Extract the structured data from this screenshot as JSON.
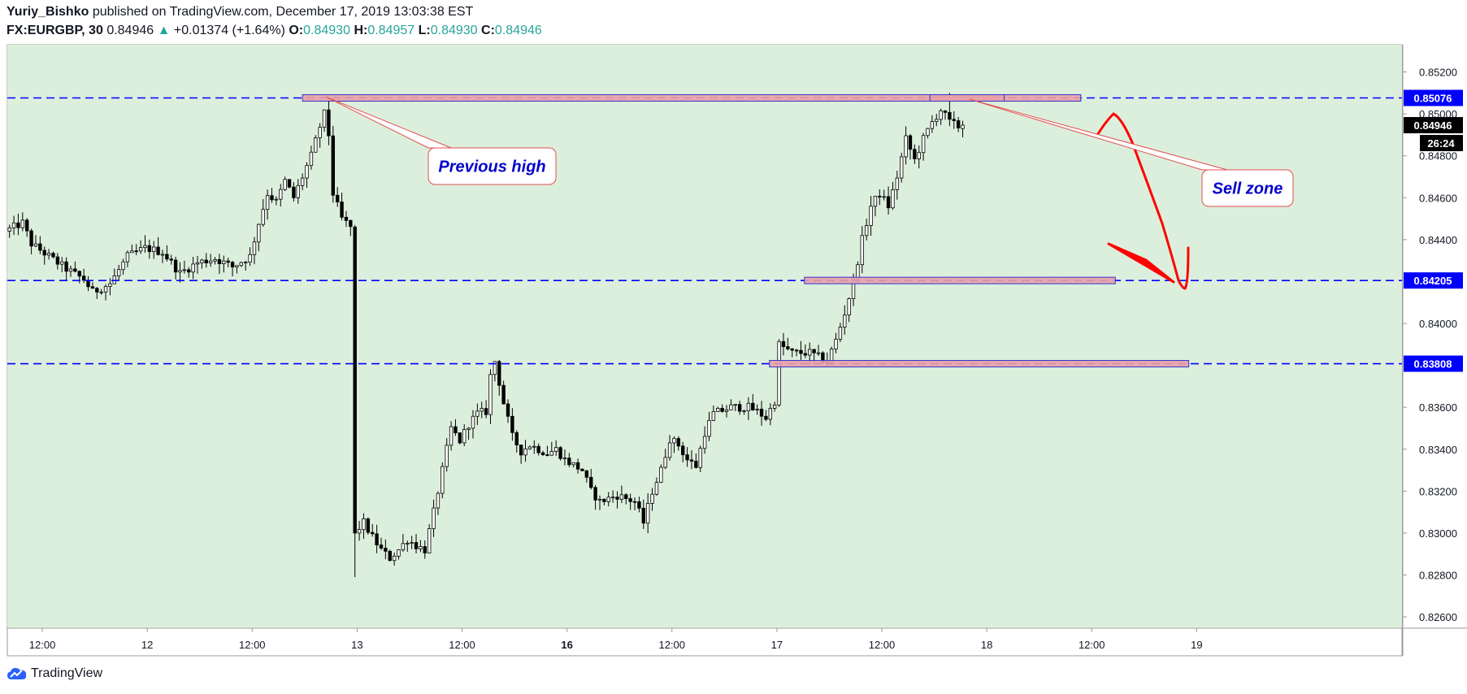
{
  "header": {
    "author": "Yuriy_Bishko",
    "published_text": "published on TradingView.com, December 17, 2019 13:03:38 EST",
    "symbol": "FX:EURGBP, 30",
    "last": "0.84946",
    "change_arrow": "▲",
    "change": "+0.01374 (+1.64%)",
    "o_label": "O:",
    "o_value": "0.84930",
    "h_label": "H:",
    "h_value": "0.84957",
    "l_label": "L:",
    "l_value": "0.84930",
    "c_label": "C:",
    "c_value": "0.84946"
  },
  "footer": {
    "brand": "TradingView",
    "logo_icon": "tradingview-cloud-icon"
  },
  "colors": {
    "background": "#dcefdc",
    "level_line": "#0000ff",
    "zone_fill": "#e8a0a8",
    "zone_border": "#3333cc",
    "callout_text": "#0000cc",
    "arrow": "#ff0000",
    "candle_up": "#ffffff",
    "candle_down": "#000000"
  },
  "chart_data": {
    "type": "candlestick",
    "y_range": [
      0.8255,
      0.8533
    ],
    "y_ticks": [
      "0.85200",
      "0.85000",
      "0.84800",
      "0.84600",
      "0.84400",
      "0.84000",
      "0.83600",
      "0.83400",
      "0.83200",
      "0.83000",
      "0.82800",
      "0.82600"
    ],
    "y_tick_values": [
      0.852,
      0.85,
      0.848,
      0.846,
      0.844,
      0.84,
      0.836,
      0.834,
      0.832,
      0.83,
      0.828,
      0.826
    ],
    "x_range": [
      0,
      288
    ],
    "x_ticks": [
      {
        "label": "12:00",
        "bar": 8,
        "bold": false
      },
      {
        "label": "12",
        "bar": 32,
        "bold": false
      },
      {
        "label": "12:00",
        "bar": 56,
        "bold": false
      },
      {
        "label": "13",
        "bar": 80,
        "bold": false
      },
      {
        "label": "12:00",
        "bar": 104,
        "bold": false
      },
      {
        "label": "16",
        "bar": 128,
        "bold": true
      },
      {
        "label": "12:00",
        "bar": 152,
        "bold": false
      },
      {
        "label": "17",
        "bar": 176,
        "bold": false
      },
      {
        "label": "12:00",
        "bar": 200,
        "bold": false
      },
      {
        "label": "18",
        "bar": 224,
        "bold": false
      },
      {
        "label": "12:00",
        "bar": 248,
        "bold": false
      },
      {
        "label": "19",
        "bar": 272,
        "bold": false
      }
    ],
    "price_path": [
      [
        0,
        0.8444
      ],
      [
        4,
        0.8448
      ],
      [
        6,
        0.8438
      ],
      [
        10,
        0.8432
      ],
      [
        14,
        0.8426
      ],
      [
        18,
        0.8421
      ],
      [
        20,
        0.8415
      ],
      [
        24,
        0.8419
      ],
      [
        28,
        0.8432
      ],
      [
        32,
        0.8436
      ],
      [
        36,
        0.8434
      ],
      [
        40,
        0.8424
      ],
      [
        44,
        0.8429
      ],
      [
        48,
        0.8431
      ],
      [
        52,
        0.8427
      ],
      [
        56,
        0.8432
      ],
      [
        58,
        0.8448
      ],
      [
        60,
        0.8462
      ],
      [
        62,
        0.8458
      ],
      [
        64,
        0.8468
      ],
      [
        66,
        0.846
      ],
      [
        68,
        0.847
      ],
      [
        70,
        0.848
      ],
      [
        72,
        0.8494
      ],
      [
        73,
        0.85
      ],
      [
        74,
        0.849
      ],
      [
        75,
        0.8462
      ],
      [
        77,
        0.845
      ],
      [
        79,
        0.8446
      ],
      [
        80,
        0.83
      ],
      [
        82,
        0.8305
      ],
      [
        84,
        0.8298
      ],
      [
        86,
        0.8292
      ],
      [
        88,
        0.8288
      ],
      [
        90,
        0.8292
      ],
      [
        92,
        0.8297
      ],
      [
        94,
        0.8294
      ],
      [
        96,
        0.8292
      ],
      [
        98,
        0.831
      ],
      [
        100,
        0.833
      ],
      [
        102,
        0.835
      ],
      [
        104,
        0.8344
      ],
      [
        106,
        0.8352
      ],
      [
        108,
        0.8357
      ],
      [
        110,
        0.8358
      ],
      [
        111,
        0.8375
      ],
      [
        112,
        0.8382
      ],
      [
        114,
        0.8362
      ],
      [
        116,
        0.8346
      ],
      [
        118,
        0.8339
      ],
      [
        120,
        0.8342
      ],
      [
        124,
        0.8338
      ],
      [
        126,
        0.834
      ],
      [
        128,
        0.8335
      ],
      [
        132,
        0.833
      ],
      [
        134,
        0.832
      ],
      [
        136,
        0.8315
      ],
      [
        140,
        0.8318
      ],
      [
        144,
        0.8315
      ],
      [
        146,
        0.8305
      ],
      [
        148,
        0.832
      ],
      [
        150,
        0.833
      ],
      [
        152,
        0.8345
      ],
      [
        154,
        0.8342
      ],
      [
        156,
        0.8335
      ],
      [
        158,
        0.8332
      ],
      [
        160,
        0.8348
      ],
      [
        162,
        0.8357
      ],
      [
        166,
        0.836
      ],
      [
        170,
        0.836
      ],
      [
        172,
        0.8358
      ],
      [
        174,
        0.8355
      ],
      [
        176,
        0.8363
      ],
      [
        177,
        0.839
      ],
      [
        180,
        0.8386
      ],
      [
        184,
        0.8386
      ],
      [
        188,
        0.8382
      ],
      [
        190,
        0.8392
      ],
      [
        192,
        0.8405
      ],
      [
        194,
        0.842
      ],
      [
        196,
        0.844
      ],
      [
        198,
        0.8456
      ],
      [
        200,
        0.8462
      ],
      [
        202,
        0.8456
      ],
      [
        204,
        0.847
      ],
      [
        206,
        0.8488
      ],
      [
        208,
        0.8478
      ],
      [
        210,
        0.8488
      ],
      [
        212,
        0.8496
      ],
      [
        214,
        0.8502
      ],
      [
        216,
        0.8496
      ],
      [
        218,
        0.8494
      ]
    ],
    "levels": [
      {
        "price": 0.85076,
        "label": "0.85076"
      },
      {
        "price": 0.84205,
        "label": "0.84205"
      },
      {
        "price": 0.83808,
        "label": "0.83808"
      }
    ],
    "current_price": {
      "price": 0.84946,
      "label": "0.84946",
      "countdown": "26:24"
    },
    "zones": [
      {
        "x0": 67.5,
        "x1": 245.5,
        "price": 0.85076
      },
      {
        "x0": 211,
        "x1": 228,
        "price": 0.85076
      },
      {
        "x0": 182.3,
        "x1": 253.4,
        "price": 0.84205
      },
      {
        "x0": 174.3,
        "x1": 270.2,
        "price": 0.83808
      }
    ],
    "callouts": [
      {
        "text": "Previous high",
        "anchor_bar": 73,
        "anchor_price": 0.8508
      },
      {
        "text": "Sell zone",
        "anchor_bar": 220,
        "anchor_price": 0.8507
      }
    ]
  }
}
